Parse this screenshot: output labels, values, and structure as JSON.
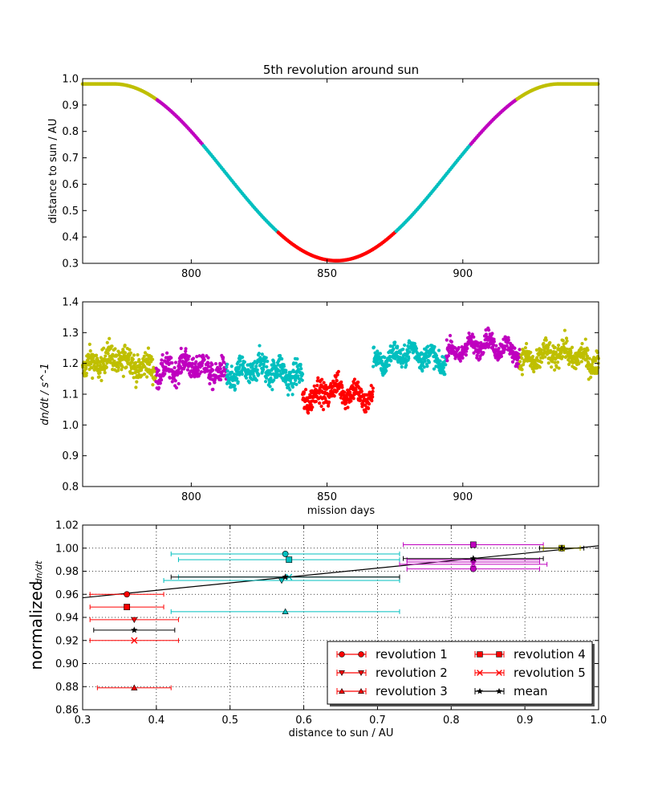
{
  "chart_data": [
    {
      "type": "scatter",
      "title": "5th revolution around sun",
      "xlabel": "",
      "ylabel": "distance to sun / AU",
      "xlim": [
        760,
        950
      ],
      "ylim": [
        0.3,
        1.0
      ],
      "xticks": [
        800,
        850,
        900
      ],
      "yticks": [
        0.3,
        0.4,
        0.5,
        0.6,
        0.7,
        0.8,
        0.9,
        1.0
      ],
      "ytick_labels": [
        "0.3",
        "0.4",
        "0.5",
        "0.6",
        "0.7",
        "0.8",
        "0.9",
        "1.0"
      ],
      "grid": false,
      "colors": {
        "far": "#bfbf00",
        "mid_far": "#bf00bf",
        "mid_near": "#00bfbf",
        "near": "#ff0000"
      },
      "orbit_model": {
        "center_day": 853.5,
        "min_au": 0.31,
        "max_au": 0.98,
        "half_width_days": 82
      },
      "color_bands_au": [
        [
          0.92,
          "far"
        ],
        [
          0.75,
          "mid_far"
        ],
        [
          0.42,
          "mid_near"
        ],
        [
          0.0,
          "near"
        ]
      ]
    },
    {
      "type": "scatter",
      "title": "",
      "xlabel": "mission days",
      "ylabel": "dn/dt / s^-1",
      "xlim": [
        760,
        950
      ],
      "ylim": [
        0.8,
        1.4
      ],
      "xticks": [
        800,
        850,
        900
      ],
      "yticks": [
        0.8,
        0.9,
        1.0,
        1.1,
        1.2,
        1.3,
        1.4
      ],
      "ytick_labels": [
        "0.8",
        "0.9",
        "1.0",
        "1.1",
        "1.2",
        "1.3",
        "1.4"
      ],
      "grid": false,
      "segments": [
        {
          "start": 760,
          "end": 787,
          "color": "#bfbf00",
          "level": 1.2,
          "spread": 0.045
        },
        {
          "start": 787,
          "end": 813,
          "color": "#bf00bf",
          "level": 1.18,
          "spread": 0.04
        },
        {
          "start": 813,
          "end": 841,
          "color": "#00bfbf",
          "level": 1.17,
          "spread": 0.045
        },
        {
          "start": 841,
          "end": 867,
          "color": "#ff0000",
          "level": 1.1,
          "spread": 0.04
        },
        {
          "start": 867,
          "end": 894,
          "color": "#00bfbf",
          "level": 1.22,
          "spread": 0.035
        },
        {
          "start": 894,
          "end": 921,
          "color": "#bf00bf",
          "level": 1.25,
          "spread": 0.03
        },
        {
          "start": 921,
          "end": 950,
          "color": "#bfbf00",
          "level": 1.22,
          "spread": 0.04
        }
      ]
    },
    {
      "type": "scatter",
      "title": "",
      "xlabel": "distance to sun / AU",
      "ylabel": "normalized dn/dt",
      "ylabel_prefix": "normalized",
      "ylabel_math": "dn/dt",
      "xlim": [
        0.3,
        1.0
      ],
      "ylim": [
        0.86,
        1.02
      ],
      "xticks": [
        0.3,
        0.4,
        0.5,
        0.6,
        0.7,
        0.8,
        0.9,
        1.0
      ],
      "xtick_labels": [
        "0.3",
        "0.4",
        "0.5",
        "0.6",
        "0.7",
        "0.8",
        "0.9",
        "1.0"
      ],
      "yticks": [
        0.86,
        0.88,
        0.9,
        0.92,
        0.94,
        0.96,
        0.98,
        1.0,
        1.02
      ],
      "ytick_labels": [
        "0.86",
        "0.88",
        "0.90",
        "0.92",
        "0.94",
        "0.96",
        "0.98",
        "1.00",
        "1.02"
      ],
      "grid": true,
      "legend_position": "lower-right",
      "fit_line": {
        "x": [
          0.3,
          1.0
        ],
        "y": [
          0.957,
          1.002
        ],
        "color": "#000000"
      },
      "series": [
        {
          "name": "revolution 1",
          "marker": "circle",
          "points": [
            {
              "x": 0.36,
              "y": 0.96,
              "xerr": 0.05,
              "color": "#ff0000"
            },
            {
              "x": 0.575,
              "y": 0.995,
              "xerr": 0.155,
              "color": "#00bfbf"
            },
            {
              "x": 0.83,
              "y": 0.982,
              "xerr": 0.09,
              "color": "#bf00bf"
            },
            {
              "x": 0.95,
              "y": 1.0,
              "xerr": 0.025,
              "color": "#bfbf00"
            }
          ]
        },
        {
          "name": "revolution 2",
          "marker": "triangle-down",
          "points": [
            {
              "x": 0.37,
              "y": 0.938,
              "xerr": 0.06,
              "color": "#ff0000"
            },
            {
              "x": 0.57,
              "y": 0.972,
              "xerr": 0.16,
              "color": "#00bfbf"
            },
            {
              "x": 0.83,
              "y": 0.988,
              "xerr": 0.09,
              "color": "#bf00bf"
            },
            {
              "x": 0.95,
              "y": 1.0,
              "xerr": 0.025,
              "color": "#bfbf00"
            }
          ]
        },
        {
          "name": "revolution 3",
          "marker": "triangle-up",
          "points": [
            {
              "x": 0.37,
              "y": 0.879,
              "xerr": 0.05,
              "color": "#ff0000"
            },
            {
              "x": 0.575,
              "y": 0.945,
              "xerr": 0.155,
              "color": "#00bfbf"
            },
            {
              "x": 0.83,
              "y": 0.99,
              "xerr": 0.09,
              "color": "#bf00bf"
            },
            {
              "x": 0.95,
              "y": 1.0,
              "xerr": 0.025,
              "color": "#bfbf00"
            }
          ]
        },
        {
          "name": "revolution 4",
          "marker": "square",
          "points": [
            {
              "x": 0.36,
              "y": 0.949,
              "xerr": 0.05,
              "color": "#ff0000"
            },
            {
              "x": 0.58,
              "y": 0.99,
              "xerr": 0.15,
              "color": "#00bfbf"
            },
            {
              "x": 0.83,
              "y": 1.003,
              "xerr": 0.095,
              "color": "#bf00bf"
            },
            {
              "x": 0.95,
              "y": 1.0,
              "xerr": 0.025,
              "color": "#bfbf00"
            }
          ]
        },
        {
          "name": "revolution 5",
          "marker": "x",
          "points": [
            {
              "x": 0.37,
              "y": 0.92,
              "xerr": 0.06,
              "color": "#ff0000"
            },
            {
              "x": 0.58,
              "y": 0.975,
              "xerr": 0.15,
              "color": "#00bfbf"
            },
            {
              "x": 0.83,
              "y": 0.986,
              "xerr": 0.1,
              "color": "#bf00bf"
            },
            {
              "x": 0.95,
              "y": 1.0,
              "xerr": 0.025,
              "color": "#bfbf00"
            }
          ]
        },
        {
          "name": "mean",
          "marker": "star",
          "points": [
            {
              "x": 0.37,
              "y": 0.929,
              "xerr": 0.055,
              "color": "#000000"
            },
            {
              "x": 0.575,
              "y": 0.975,
              "xerr": 0.155,
              "color": "#000000"
            },
            {
              "x": 0.83,
              "y": 0.991,
              "xerr": 0.095,
              "color": "#000000"
            },
            {
              "x": 0.95,
              "y": 1.0,
              "xerr": 0.03,
              "color": "#000000"
            }
          ]
        }
      ],
      "legend_colors": {
        "revolution 1": "#ff0000",
        "revolution 2": "#ff0000",
        "revolution 3": "#ff0000",
        "revolution 4": "#ff0000",
        "revolution 5": "#ff0000",
        "mean": "#000000"
      }
    }
  ]
}
